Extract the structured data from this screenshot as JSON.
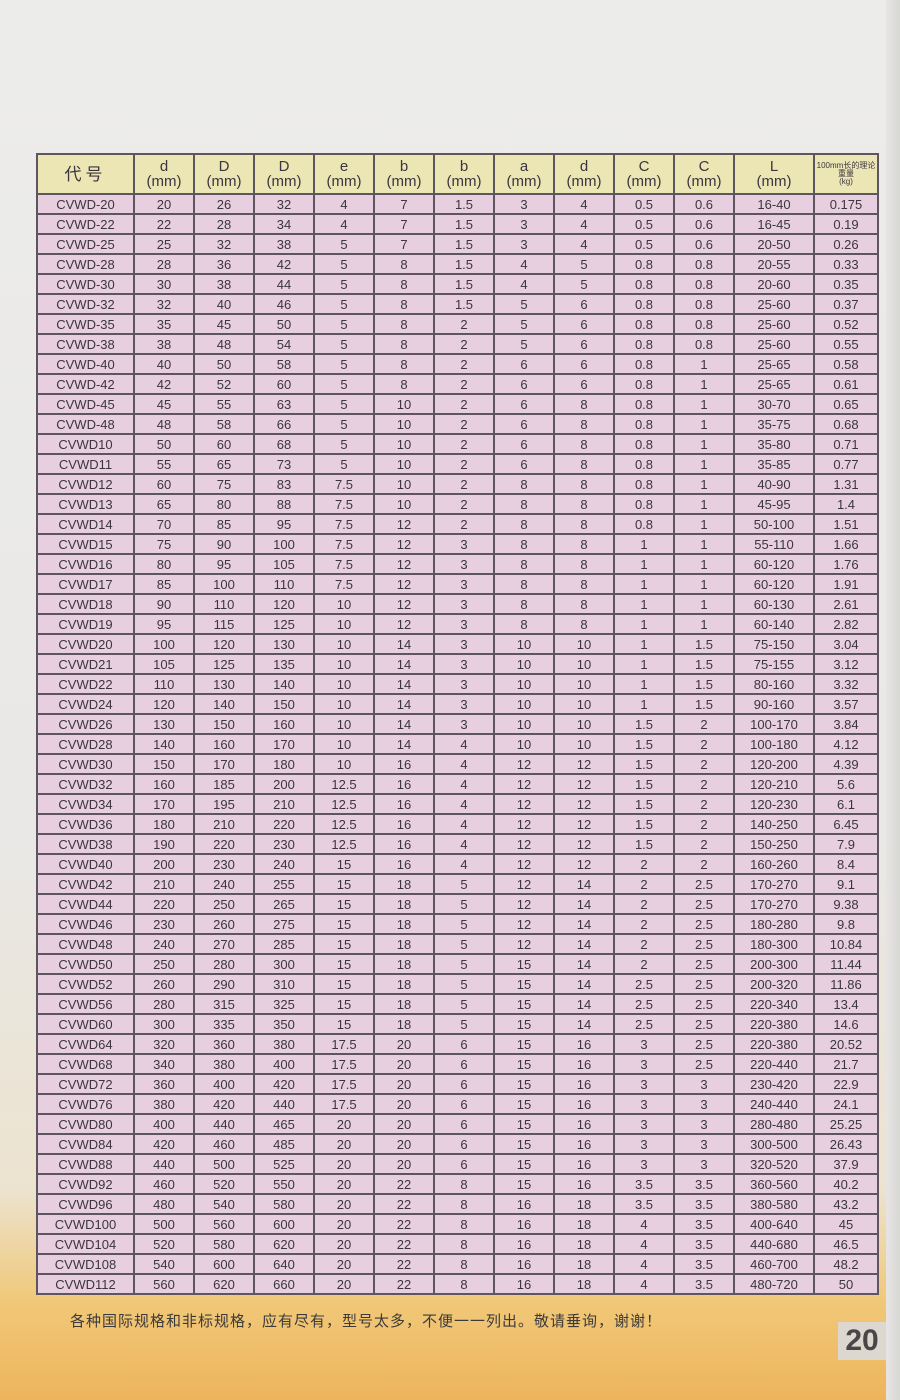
{
  "table": {
    "headers": [
      {
        "name": "代号",
        "unit": ""
      },
      {
        "name": "d",
        "unit": "(mm)"
      },
      {
        "name": "D",
        "unit": "(mm)"
      },
      {
        "name": "D",
        "unit": "(mm)"
      },
      {
        "name": "e",
        "unit": "(mm)"
      },
      {
        "name": "b",
        "unit": "(mm)"
      },
      {
        "name": "b",
        "unit": "(mm)"
      },
      {
        "name": "a",
        "unit": "(mm)"
      },
      {
        "name": "d",
        "unit": "(mm)"
      },
      {
        "name": "C",
        "unit": "(mm)"
      },
      {
        "name": "C",
        "unit": "(mm)"
      },
      {
        "name": "L",
        "unit": "(mm)"
      },
      {
        "name": "100mm长的理论重量",
        "unit": "(kg)"
      }
    ],
    "rows": [
      [
        "CVWD-20",
        "20",
        "26",
        "32",
        "4",
        "7",
        "1.5",
        "3",
        "4",
        "0.5",
        "0.6",
        "16-40",
        "0.175"
      ],
      [
        "CVWD-22",
        "22",
        "28",
        "34",
        "4",
        "7",
        "1.5",
        "3",
        "4",
        "0.5",
        "0.6",
        "16-45",
        "0.19"
      ],
      [
        "CVWD-25",
        "25",
        "32",
        "38",
        "5",
        "7",
        "1.5",
        "3",
        "4",
        "0.5",
        "0.6",
        "20-50",
        "0.26"
      ],
      [
        "CVWD-28",
        "28",
        "36",
        "42",
        "5",
        "8",
        "1.5",
        "4",
        "5",
        "0.8",
        "0.8",
        "20-55",
        "0.33"
      ],
      [
        "CVWD-30",
        "30",
        "38",
        "44",
        "5",
        "8",
        "1.5",
        "4",
        "5",
        "0.8",
        "0.8",
        "20-60",
        "0.35"
      ],
      [
        "CVWD-32",
        "32",
        "40",
        "46",
        "5",
        "8",
        "1.5",
        "5",
        "6",
        "0.8",
        "0.8",
        "25-60",
        "0.37"
      ],
      [
        "CVWD-35",
        "35",
        "45",
        "50",
        "5",
        "8",
        "2",
        "5",
        "6",
        "0.8",
        "0.8",
        "25-60",
        "0.52"
      ],
      [
        "CVWD-38",
        "38",
        "48",
        "54",
        "5",
        "8",
        "2",
        "5",
        "6",
        "0.8",
        "0.8",
        "25-60",
        "0.55"
      ],
      [
        "CVWD-40",
        "40",
        "50",
        "58",
        "5",
        "8",
        "2",
        "6",
        "6",
        "0.8",
        "1",
        "25-65",
        "0.58"
      ],
      [
        "CVWD-42",
        "42",
        "52",
        "60",
        "5",
        "8",
        "2",
        "6",
        "6",
        "0.8",
        "1",
        "25-65",
        "0.61"
      ],
      [
        "CVWD-45",
        "45",
        "55",
        "63",
        "5",
        "10",
        "2",
        "6",
        "8",
        "0.8",
        "1",
        "30-70",
        "0.65"
      ],
      [
        "CVWD-48",
        "48",
        "58",
        "66",
        "5",
        "10",
        "2",
        "6",
        "8",
        "0.8",
        "1",
        "35-75",
        "0.68"
      ],
      [
        "CVWD10",
        "50",
        "60",
        "68",
        "5",
        "10",
        "2",
        "6",
        "8",
        "0.8",
        "1",
        "35-80",
        "0.71"
      ],
      [
        "CVWD11",
        "55",
        "65",
        "73",
        "5",
        "10",
        "2",
        "6",
        "8",
        "0.8",
        "1",
        "35-85",
        "0.77"
      ],
      [
        "CVWD12",
        "60",
        "75",
        "83",
        "7.5",
        "10",
        "2",
        "8",
        "8",
        "0.8",
        "1",
        "40-90",
        "1.31"
      ],
      [
        "CVWD13",
        "65",
        "80",
        "88",
        "7.5",
        "10",
        "2",
        "8",
        "8",
        "0.8",
        "1",
        "45-95",
        "1.4"
      ],
      [
        "CVWD14",
        "70",
        "85",
        "95",
        "7.5",
        "12",
        "2",
        "8",
        "8",
        "0.8",
        "1",
        "50-100",
        "1.51"
      ],
      [
        "CVWD15",
        "75",
        "90",
        "100",
        "7.5",
        "12",
        "3",
        "8",
        "8",
        "1",
        "1",
        "55-110",
        "1.66"
      ],
      [
        "CVWD16",
        "80",
        "95",
        "105",
        "7.5",
        "12",
        "3",
        "8",
        "8",
        "1",
        "1",
        "60-120",
        "1.76"
      ],
      [
        "CVWD17",
        "85",
        "100",
        "110",
        "7.5",
        "12",
        "3",
        "8",
        "8",
        "1",
        "1",
        "60-120",
        "1.91"
      ],
      [
        "CVWD18",
        "90",
        "110",
        "120",
        "10",
        "12",
        "3",
        "8",
        "8",
        "1",
        "1",
        "60-130",
        "2.61"
      ],
      [
        "CVWD19",
        "95",
        "115",
        "125",
        "10",
        "12",
        "3",
        "8",
        "8",
        "1",
        "1",
        "60-140",
        "2.82"
      ],
      [
        "CVWD20",
        "100",
        "120",
        "130",
        "10",
        "14",
        "3",
        "10",
        "10",
        "1",
        "1.5",
        "75-150",
        "3.04"
      ],
      [
        "CVWD21",
        "105",
        "125",
        "135",
        "10",
        "14",
        "3",
        "10",
        "10",
        "1",
        "1.5",
        "75-155",
        "3.12"
      ],
      [
        "CVWD22",
        "110",
        "130",
        "140",
        "10",
        "14",
        "3",
        "10",
        "10",
        "1",
        "1.5",
        "80-160",
        "3.32"
      ],
      [
        "CVWD24",
        "120",
        "140",
        "150",
        "10",
        "14",
        "3",
        "10",
        "10",
        "1",
        "1.5",
        "90-160",
        "3.57"
      ],
      [
        "CVWD26",
        "130",
        "150",
        "160",
        "10",
        "14",
        "3",
        "10",
        "10",
        "1.5",
        "2",
        "100-170",
        "3.84"
      ],
      [
        "CVWD28",
        "140",
        "160",
        "170",
        "10",
        "14",
        "4",
        "10",
        "10",
        "1.5",
        "2",
        "100-180",
        "4.12"
      ],
      [
        "CVWD30",
        "150",
        "170",
        "180",
        "10",
        "16",
        "4",
        "12",
        "12",
        "1.5",
        "2",
        "120-200",
        "4.39"
      ],
      [
        "CVWD32",
        "160",
        "185",
        "200",
        "12.5",
        "16",
        "4",
        "12",
        "12",
        "1.5",
        "2",
        "120-210",
        "5.6"
      ],
      [
        "CVWD34",
        "170",
        "195",
        "210",
        "12.5",
        "16",
        "4",
        "12",
        "12",
        "1.5",
        "2",
        "120-230",
        "6.1"
      ],
      [
        "CVWD36",
        "180",
        "210",
        "220",
        "12.5",
        "16",
        "4",
        "12",
        "12",
        "1.5",
        "2",
        "140-250",
        "6.45"
      ],
      [
        "CVWD38",
        "190",
        "220",
        "230",
        "12.5",
        "16",
        "4",
        "12",
        "12",
        "1.5",
        "2",
        "150-250",
        "7.9"
      ],
      [
        "CVWD40",
        "200",
        "230",
        "240",
        "15",
        "16",
        "4",
        "12",
        "12",
        "2",
        "2",
        "160-260",
        "8.4"
      ],
      [
        "CVWD42",
        "210",
        "240",
        "255",
        "15",
        "18",
        "5",
        "12",
        "14",
        "2",
        "2.5",
        "170-270",
        "9.1"
      ],
      [
        "CVWD44",
        "220",
        "250",
        "265",
        "15",
        "18",
        "5",
        "12",
        "14",
        "2",
        "2.5",
        "170-270",
        "9.38"
      ],
      [
        "CVWD46",
        "230",
        "260",
        "275",
        "15",
        "18",
        "5",
        "12",
        "14",
        "2",
        "2.5",
        "180-280",
        "9.8"
      ],
      [
        "CVWD48",
        "240",
        "270",
        "285",
        "15",
        "18",
        "5",
        "12",
        "14",
        "2",
        "2.5",
        "180-300",
        "10.84"
      ],
      [
        "CVWD50",
        "250",
        "280",
        "300",
        "15",
        "18",
        "5",
        "15",
        "14",
        "2",
        "2.5",
        "200-300",
        "11.44"
      ],
      [
        "CVWD52",
        "260",
        "290",
        "310",
        "15",
        "18",
        "5",
        "15",
        "14",
        "2.5",
        "2.5",
        "200-320",
        "11.86"
      ],
      [
        "CVWD56",
        "280",
        "315",
        "325",
        "15",
        "18",
        "5",
        "15",
        "14",
        "2.5",
        "2.5",
        "220-340",
        "13.4"
      ],
      [
        "CVWD60",
        "300",
        "335",
        "350",
        "15",
        "18",
        "5",
        "15",
        "14",
        "2.5",
        "2.5",
        "220-380",
        "14.6"
      ],
      [
        "CVWD64",
        "320",
        "360",
        "380",
        "17.5",
        "20",
        "6",
        "15",
        "16",
        "3",
        "2.5",
        "220-380",
        "20.52"
      ],
      [
        "CVWD68",
        "340",
        "380",
        "400",
        "17.5",
        "20",
        "6",
        "15",
        "16",
        "3",
        "2.5",
        "220-440",
        "21.7"
      ],
      [
        "CVWD72",
        "360",
        "400",
        "420",
        "17.5",
        "20",
        "6",
        "15",
        "16",
        "3",
        "3",
        "230-420",
        "22.9"
      ],
      [
        "CVWD76",
        "380",
        "420",
        "440",
        "17.5",
        "20",
        "6",
        "15",
        "16",
        "3",
        "3",
        "240-440",
        "24.1"
      ],
      [
        "CVWD80",
        "400",
        "440",
        "465",
        "20",
        "20",
        "6",
        "15",
        "16",
        "3",
        "3",
        "280-480",
        "25.25"
      ],
      [
        "CVWD84",
        "420",
        "460",
        "485",
        "20",
        "20",
        "6",
        "15",
        "16",
        "3",
        "3",
        "300-500",
        "26.43"
      ],
      [
        "CVWD88",
        "440",
        "500",
        "525",
        "20",
        "20",
        "6",
        "15",
        "16",
        "3",
        "3",
        "320-520",
        "37.9"
      ],
      [
        "CVWD92",
        "460",
        "520",
        "550",
        "20",
        "22",
        "8",
        "15",
        "16",
        "3.5",
        "3.5",
        "360-560",
        "40.2"
      ],
      [
        "CVWD96",
        "480",
        "540",
        "580",
        "20",
        "22",
        "8",
        "16",
        "18",
        "3.5",
        "3.5",
        "380-580",
        "43.2"
      ],
      [
        "CVWD100",
        "500",
        "560",
        "600",
        "20",
        "22",
        "8",
        "16",
        "18",
        "4",
        "3.5",
        "400-640",
        "45"
      ],
      [
        "CVWD104",
        "520",
        "580",
        "620",
        "20",
        "22",
        "8",
        "16",
        "18",
        "4",
        "3.5",
        "440-680",
        "46.5"
      ],
      [
        "CVWD108",
        "540",
        "600",
        "640",
        "20",
        "22",
        "8",
        "16",
        "18",
        "4",
        "3.5",
        "460-700",
        "48.2"
      ],
      [
        "CVWD112",
        "560",
        "620",
        "660",
        "20",
        "22",
        "8",
        "16",
        "18",
        "4",
        "3.5",
        "480-720",
        "50"
      ]
    ]
  },
  "footer_note": "各种国际规格和非标规格，应有尽有，型号太多，不便一一列出。敬请垂询，谢谢！",
  "page_number": "20",
  "colors": {
    "header_bg": "#ece6b4",
    "cell_bg": "#e7cfe0",
    "border": "#5d5560"
  }
}
